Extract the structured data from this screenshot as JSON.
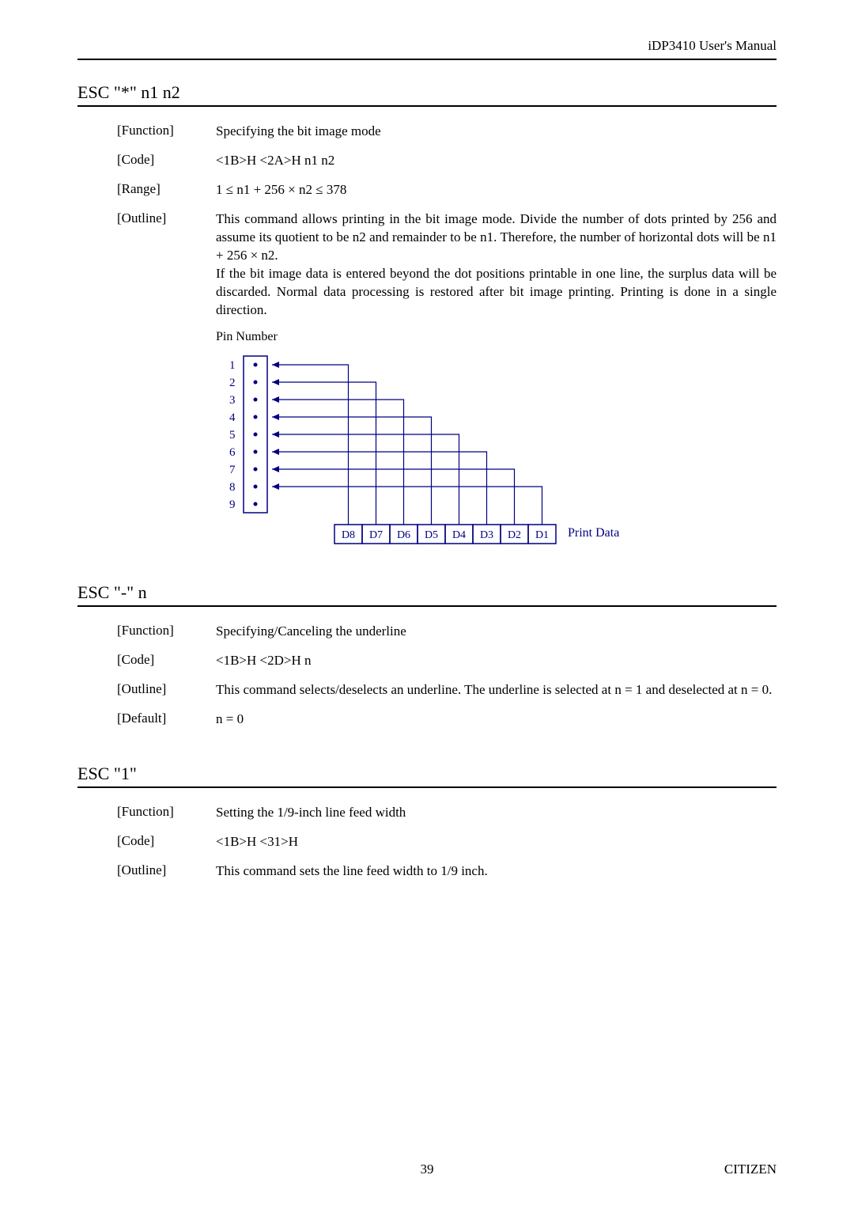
{
  "header": {
    "right": "iDP3410 User's Manual"
  },
  "section1": {
    "title": "ESC \"*\" n1 n2",
    "rows": [
      {
        "term": "[Function]",
        "desc": "Specifying the bit image mode"
      },
      {
        "term": "[Code]",
        "desc": "<1B>H <2A>H n1 n2"
      },
      {
        "term": "[Range]",
        "desc": "1 ≤ n1 + 256 × n2 ≤ 378"
      },
      {
        "term": "[Outline]",
        "desc": "This command allows printing in the bit image mode.  Divide the number of dots printed by 256 and assume its quotient to be n2 and remainder to be n1.  Therefore, the number of horizontal dots will be n1 + 256 × n2.\nIf the bit image data is entered beyond the dot positions printable in one line, the surplus data will be discarded.  Normal data processing is restored after bit image printing.  Printing is done in a single direction."
      }
    ],
    "diagram": {
      "title": "Pin Number",
      "pins": [
        "1",
        "2",
        "3",
        "4",
        "5",
        "6",
        "7",
        "8",
        "9"
      ],
      "bits": [
        "D8",
        "D7",
        "D6",
        "D5",
        "D4",
        "D3",
        "D2",
        "D1"
      ],
      "label": "Print Data",
      "colors": {
        "stroke": "#000080",
        "text": "#000080"
      }
    }
  },
  "section2": {
    "title": "ESC \"-\" n",
    "rows": [
      {
        "term": "[Function]",
        "desc": "Specifying/Canceling the underline"
      },
      {
        "term": "[Code]",
        "desc": "<1B>H <2D>H n"
      },
      {
        "term": "[Outline]",
        "desc": "This command selects/deselects an underline.  The underline is selected at n = 1 and deselected at n = 0."
      },
      {
        "term": "[Default]",
        "desc": "n = 0"
      }
    ]
  },
  "section3": {
    "title": "ESC \"1\"",
    "rows": [
      {
        "term": "[Function]",
        "desc": "Setting the 1/9-inch line feed width"
      },
      {
        "term": "[Code]",
        "desc": "<1B>H <31>H"
      },
      {
        "term": "[Outline]",
        "desc": "This command sets the line feed width to 1/9 inch."
      }
    ]
  },
  "footer": {
    "page": "39",
    "right": "CITIZEN"
  }
}
